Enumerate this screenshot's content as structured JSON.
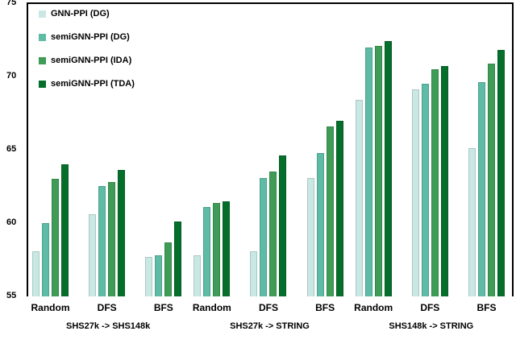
{
  "figure": {
    "background": "#ffffff",
    "axis_color": "#000000"
  },
  "chart_data": {
    "type": "bar",
    "title": "",
    "xlabel": "",
    "ylabel": "",
    "ylim": [
      55,
      75
    ],
    "yticks": [
      75,
      70,
      65,
      60,
      55
    ],
    "grid": false,
    "legend_position": "upper-left-inside",
    "series": [
      {
        "name": "GNN-PPI (DG)",
        "color": "#c9e8e4"
      },
      {
        "name": "semiGNN-PPI (DG)",
        "color": "#5ebba5"
      },
      {
        "name": "semiGNN-PPI (IDA)",
        "color": "#3e9c56"
      },
      {
        "name": "semiGNN-PPI (TDA)",
        "color": "#056e2b"
      }
    ],
    "datasets": [
      {
        "label": "SHS27k -> SHS148k",
        "groups": [
          {
            "label": "Random",
            "values": [
              58.1,
              60.0,
              63.0,
              64.0
            ]
          },
          {
            "label": "DFS",
            "values": [
              60.6,
              62.5,
              62.8,
              63.6
            ]
          },
          {
            "label": "BFS",
            "values": [
              57.7,
              57.8,
              58.7,
              60.1
            ]
          }
        ]
      },
      {
        "label": "SHS27k -> STRING",
        "groups": [
          {
            "label": "Random",
            "values": [
              57.8,
              61.1,
              61.4,
              61.5
            ]
          },
          {
            "label": "DFS",
            "values": [
              58.1,
              63.1,
              63.5,
              64.6
            ]
          },
          {
            "label": "BFS",
            "values": [
              63.1,
              64.8,
              66.6,
              67.0
            ]
          }
        ]
      },
      {
        "label": "SHS148k -> STRING",
        "groups": [
          {
            "label": "Random",
            "values": [
              68.4,
              72.0,
              72.1,
              72.4
            ]
          },
          {
            "label": "DFS",
            "values": [
              69.1,
              69.5,
              70.5,
              70.7
            ]
          },
          {
            "label": "BFS",
            "values": [
              65.1,
              69.6,
              70.9,
              71.8
            ]
          }
        ]
      }
    ]
  }
}
